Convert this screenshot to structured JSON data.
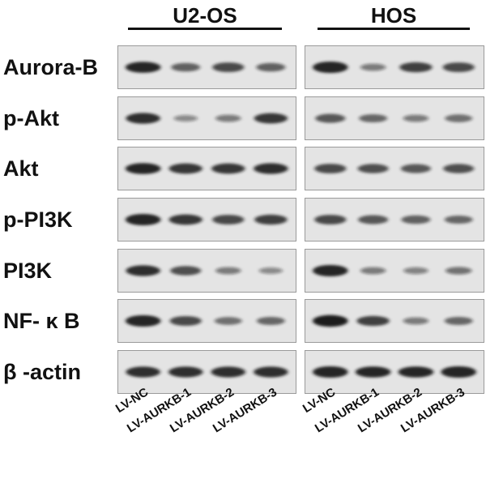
{
  "groups": [
    {
      "name": "U2-OS",
      "lanes": [
        "LV-NC",
        "LV-AURKB-1",
        "LV-AURKB-2",
        "LV-AURKB-3"
      ]
    },
    {
      "name": "HOS",
      "lanes": [
        "LV-NC",
        "LV-AURKB-1",
        "LV-AURKB-2",
        "LV-AURKB-3"
      ]
    }
  ],
  "rows": [
    {
      "label": "Aurora-B",
      "band_intensity": [
        [
          0.9,
          0.55,
          0.7,
          0.55
        ],
        [
          0.95,
          0.35,
          0.75,
          0.7
        ]
      ]
    },
    {
      "label": "p-Akt",
      "band_intensity": [
        [
          0.85,
          0.25,
          0.35,
          0.8
        ],
        [
          0.6,
          0.5,
          0.35,
          0.45
        ]
      ]
    },
    {
      "label": "Akt",
      "band_intensity": [
        [
          0.9,
          0.8,
          0.8,
          0.85
        ],
        [
          0.7,
          0.65,
          0.6,
          0.65
        ]
      ]
    },
    {
      "label": "p-PI3K",
      "band_intensity": [
        [
          0.95,
          0.8,
          0.7,
          0.75
        ],
        [
          0.7,
          0.6,
          0.55,
          0.5
        ]
      ]
    },
    {
      "label": "PI3K",
      "band_intensity": [
        [
          0.85,
          0.65,
          0.35,
          0.25
        ],
        [
          0.95,
          0.35,
          0.3,
          0.4
        ]
      ]
    },
    {
      "label": "NF- κ B",
      "band_intensity": [
        [
          0.95,
          0.7,
          0.45,
          0.5
        ],
        [
          1.0,
          0.75,
          0.35,
          0.5
        ]
      ]
    },
    {
      "label": "β -actin",
      "band_intensity": [
        [
          0.85,
          0.85,
          0.85,
          0.85
        ],
        [
          0.95,
          0.9,
          0.9,
          0.95
        ]
      ]
    }
  ],
  "colors": {
    "membrane": "#e4e4e4",
    "band": "#1a1a1a",
    "text": "#111111"
  }
}
